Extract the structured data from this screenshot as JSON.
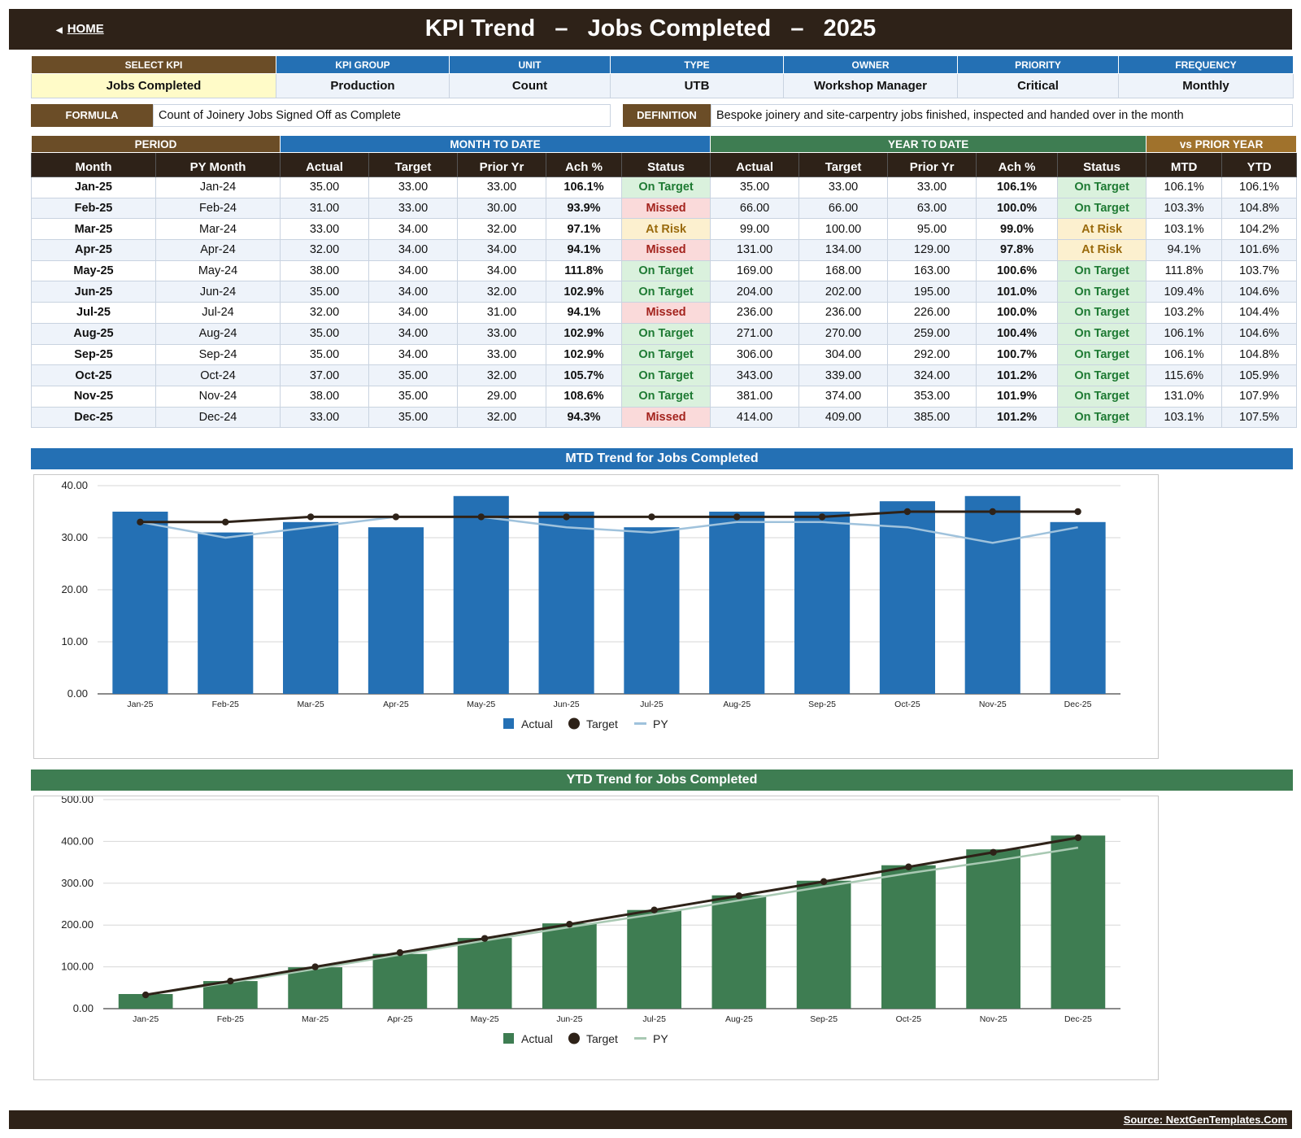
{
  "header": {
    "home_label": "HOME",
    "title": "KPI Trend   –   Jobs Completed   –   2025"
  },
  "kpi": {
    "headers": [
      "SELECT KPI",
      "KPI GROUP",
      "UNIT",
      "TYPE",
      "OWNER",
      "PRIORITY",
      "FREQUENCY"
    ],
    "values": [
      "Jobs Completed",
      "Production",
      "Count",
      "UTB",
      "Workshop Manager",
      "Critical",
      "Monthly"
    ]
  },
  "formula": {
    "formula_label": "FORMULA",
    "formula_text": "Count of Joinery Jobs Signed Off as Complete",
    "definition_label": "DEFINITION",
    "definition_text": "Bespoke joinery and site-carpentry jobs finished, inspected and handed over in the month"
  },
  "table": {
    "groups": [
      "PERIOD",
      "MONTH TO DATE",
      "YEAR TO DATE",
      "vs PRIOR YEAR"
    ],
    "columns": [
      "Month",
      "PY Month",
      "Actual",
      "Target",
      "Prior Yr",
      "Ach %",
      "Status",
      "Actual",
      "Target",
      "Prior Yr",
      "Ach %",
      "Status",
      "MTD",
      "YTD"
    ],
    "rows": [
      [
        "Jan-25",
        "Jan-24",
        "35.00",
        "33.00",
        "33.00",
        "106.1%",
        "On Target",
        "35.00",
        "33.00",
        "33.00",
        "106.1%",
        "On Target",
        "106.1%",
        "106.1%"
      ],
      [
        "Feb-25",
        "Feb-24",
        "31.00",
        "33.00",
        "30.00",
        "93.9%",
        "Missed",
        "66.00",
        "66.00",
        "63.00",
        "100.0%",
        "On Target",
        "103.3%",
        "104.8%"
      ],
      [
        "Mar-25",
        "Mar-24",
        "33.00",
        "34.00",
        "32.00",
        "97.1%",
        "At Risk",
        "99.00",
        "100.00",
        "95.00",
        "99.0%",
        "At Risk",
        "103.1%",
        "104.2%"
      ],
      [
        "Apr-25",
        "Apr-24",
        "32.00",
        "34.00",
        "34.00",
        "94.1%",
        "Missed",
        "131.00",
        "134.00",
        "129.00",
        "97.8%",
        "At Risk",
        "94.1%",
        "101.6%"
      ],
      [
        "May-25",
        "May-24",
        "38.00",
        "34.00",
        "34.00",
        "111.8%",
        "On Target",
        "169.00",
        "168.00",
        "163.00",
        "100.6%",
        "On Target",
        "111.8%",
        "103.7%"
      ],
      [
        "Jun-25",
        "Jun-24",
        "35.00",
        "34.00",
        "32.00",
        "102.9%",
        "On Target",
        "204.00",
        "202.00",
        "195.00",
        "101.0%",
        "On Target",
        "109.4%",
        "104.6%"
      ],
      [
        "Jul-25",
        "Jul-24",
        "32.00",
        "34.00",
        "31.00",
        "94.1%",
        "Missed",
        "236.00",
        "236.00",
        "226.00",
        "100.0%",
        "On Target",
        "103.2%",
        "104.4%"
      ],
      [
        "Aug-25",
        "Aug-24",
        "35.00",
        "34.00",
        "33.00",
        "102.9%",
        "On Target",
        "271.00",
        "270.00",
        "259.00",
        "100.4%",
        "On Target",
        "106.1%",
        "104.6%"
      ],
      [
        "Sep-25",
        "Sep-24",
        "35.00",
        "34.00",
        "33.00",
        "102.9%",
        "On Target",
        "306.00",
        "304.00",
        "292.00",
        "100.7%",
        "On Target",
        "106.1%",
        "104.8%"
      ],
      [
        "Oct-25",
        "Oct-24",
        "37.00",
        "35.00",
        "32.00",
        "105.7%",
        "On Target",
        "343.00",
        "339.00",
        "324.00",
        "101.2%",
        "On Target",
        "115.6%",
        "105.9%"
      ],
      [
        "Nov-25",
        "Nov-24",
        "38.00",
        "35.00",
        "29.00",
        "108.6%",
        "On Target",
        "381.00",
        "374.00",
        "353.00",
        "101.9%",
        "On Target",
        "131.0%",
        "107.9%"
      ],
      [
        "Dec-25",
        "Dec-24",
        "33.00",
        "35.00",
        "32.00",
        "94.3%",
        "Missed",
        "414.00",
        "409.00",
        "385.00",
        "101.2%",
        "On Target",
        "103.1%",
        "107.5%"
      ]
    ]
  },
  "charts": {
    "mtd_title": "MTD Trend for Jobs Completed",
    "ytd_title": "YTD Trend for Jobs Completed"
  },
  "colors": {
    "mtd_bar": "#2470b4",
    "mtd_py": "#9fc2dc",
    "ytd_bar": "#3e7d52",
    "ytd_py": "#a9c9b3",
    "target": "#2e2218"
  },
  "chart_data": [
    {
      "type": "bar",
      "title": "MTD Trend for Jobs Completed",
      "categories": [
        "Jan-25",
        "Feb-25",
        "Mar-25",
        "Apr-25",
        "May-25",
        "Jun-25",
        "Jul-25",
        "Aug-25",
        "Sep-25",
        "Oct-25",
        "Nov-25",
        "Dec-25"
      ],
      "series": [
        {
          "name": "Actual",
          "kind": "bar",
          "values": [
            35,
            31,
            33,
            32,
            38,
            35,
            32,
            35,
            35,
            37,
            38,
            33
          ]
        },
        {
          "name": "Target",
          "kind": "line-markers",
          "values": [
            33,
            33,
            34,
            34,
            34,
            34,
            34,
            34,
            34,
            35,
            35,
            35
          ]
        },
        {
          "name": "PY",
          "kind": "line",
          "values": [
            33,
            30,
            32,
            34,
            34,
            32,
            31,
            33,
            33,
            32,
            29,
            32
          ]
        }
      ],
      "ylim": [
        0,
        40
      ],
      "yticks": [
        "0.00",
        "10.00",
        "20.00",
        "30.00",
        "40.00"
      ],
      "grid": true,
      "legend": "bottom-center"
    },
    {
      "type": "bar",
      "title": "YTD Trend for Jobs Completed",
      "categories": [
        "Jan-25",
        "Feb-25",
        "Mar-25",
        "Apr-25",
        "May-25",
        "Jun-25",
        "Jul-25",
        "Aug-25",
        "Sep-25",
        "Oct-25",
        "Nov-25",
        "Dec-25"
      ],
      "series": [
        {
          "name": "Actual",
          "kind": "bar",
          "values": [
            35,
            66,
            99,
            131,
            169,
            204,
            236,
            271,
            306,
            343,
            381,
            414
          ]
        },
        {
          "name": "Target",
          "kind": "line-markers",
          "values": [
            33,
            66,
            100,
            134,
            168,
            202,
            236,
            270,
            304,
            339,
            374,
            409
          ]
        },
        {
          "name": "PY",
          "kind": "line",
          "values": [
            33,
            63,
            95,
            129,
            163,
            195,
            226,
            259,
            292,
            324,
            353,
            385
          ]
        }
      ],
      "ylim": [
        0,
        500
      ],
      "yticks": [
        "0.00",
        "100.00",
        "200.00",
        "300.00",
        "400.00",
        "500.00"
      ],
      "grid": true,
      "legend": "bottom-center"
    }
  ],
  "footer": {
    "source": "Source: NextGenTemplates.Com"
  }
}
